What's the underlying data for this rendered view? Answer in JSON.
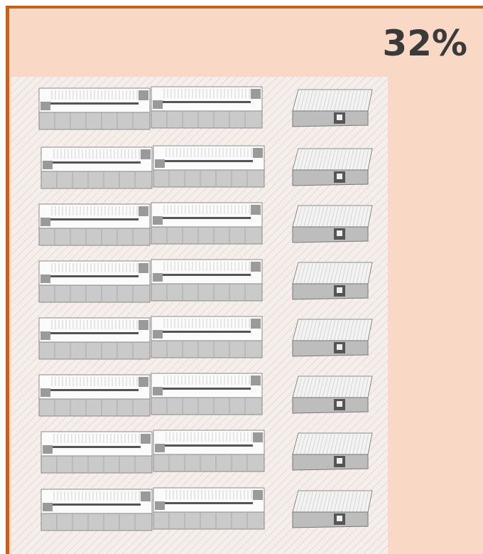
{
  "header": {
    "percent": "32%"
  }
}
